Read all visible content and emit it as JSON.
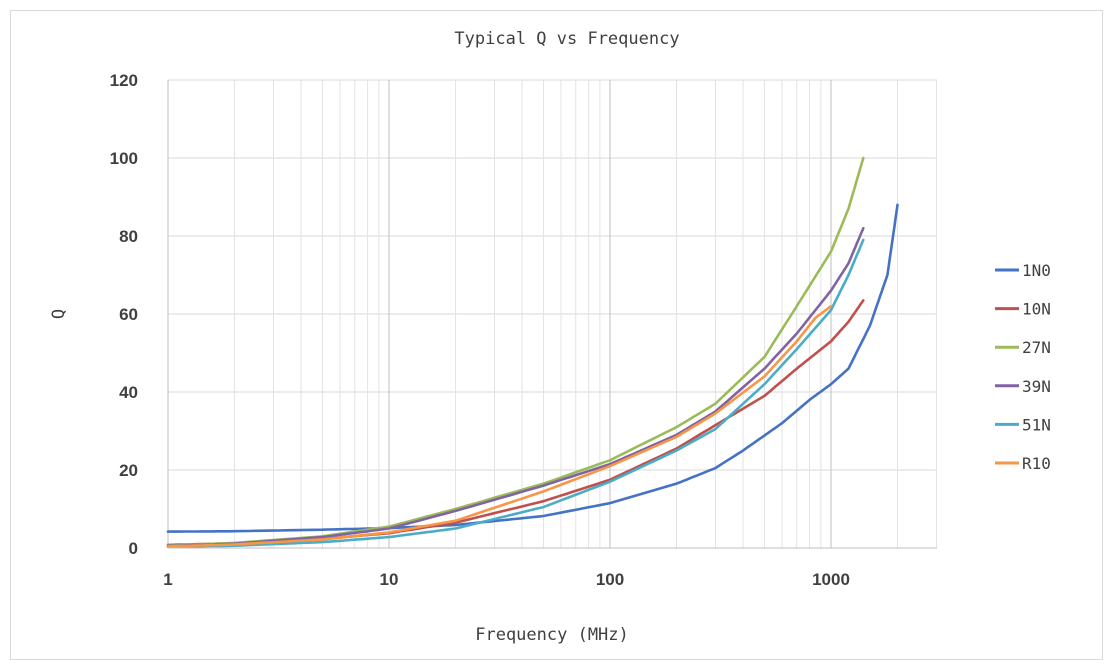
{
  "chart_data": {
    "type": "line",
    "title": "Typical Q vs Frequency",
    "xlabel": "Frequency (MHz)",
    "ylabel": "Q",
    "x_scale": "log",
    "xlim": [
      1,
      3000
    ],
    "ylim": [
      0,
      120
    ],
    "x_ticks": [
      "1",
      "10",
      "100",
      "1000"
    ],
    "y_ticks": [
      "0",
      "20",
      "40",
      "60",
      "80",
      "100",
      "120"
    ],
    "grid": true,
    "legend_position": "right",
    "series": [
      {
        "name": "1N0",
        "color": "#4472c4",
        "points": [
          [
            1,
            4.2
          ],
          [
            2,
            4.3
          ],
          [
            5,
            4.7
          ],
          [
            10,
            5.1
          ],
          [
            20,
            5.9
          ],
          [
            50,
            8.2
          ],
          [
            100,
            11.5
          ],
          [
            200,
            16.5
          ],
          [
            300,
            20.5
          ],
          [
            400,
            25
          ],
          [
            600,
            32
          ],
          [
            800,
            38
          ],
          [
            1000,
            42
          ],
          [
            1200,
            46
          ],
          [
            1500,
            57
          ],
          [
            1800,
            70
          ],
          [
            2000,
            88
          ]
        ]
      },
      {
        "name": "10N",
        "color": "#c0504d",
        "points": [
          [
            1,
            0.8
          ],
          [
            2,
            1.2
          ],
          [
            5,
            2.3
          ],
          [
            10,
            3.8
          ],
          [
            20,
            6.5
          ],
          [
            50,
            12
          ],
          [
            100,
            17.5
          ],
          [
            200,
            25.5
          ],
          [
            300,
            31.5
          ],
          [
            500,
            39
          ],
          [
            700,
            46
          ],
          [
            1000,
            53
          ],
          [
            1200,
            58
          ],
          [
            1400,
            63.5
          ]
        ]
      },
      {
        "name": "27N",
        "color": "#9bbb59",
        "points": [
          [
            1,
            0.6
          ],
          [
            2,
            1.3
          ],
          [
            5,
            3
          ],
          [
            10,
            5.5
          ],
          [
            20,
            10
          ],
          [
            50,
            16.5
          ],
          [
            100,
            22.5
          ],
          [
            200,
            31
          ],
          [
            300,
            37
          ],
          [
            500,
            49
          ],
          [
            700,
            62
          ],
          [
            1000,
            76
          ],
          [
            1200,
            87
          ],
          [
            1400,
            100
          ]
        ]
      },
      {
        "name": "39N",
        "color": "#8064a2",
        "points": [
          [
            1,
            0.5
          ],
          [
            2,
            1.1
          ],
          [
            5,
            2.8
          ],
          [
            10,
            5
          ],
          [
            20,
            9.5
          ],
          [
            50,
            16
          ],
          [
            100,
            21.5
          ],
          [
            200,
            29
          ],
          [
            300,
            35
          ],
          [
            500,
            46
          ],
          [
            700,
            55
          ],
          [
            1000,
            66
          ],
          [
            1200,
            73
          ],
          [
            1400,
            82
          ]
        ]
      },
      {
        "name": "51N",
        "color": "#4bacc6",
        "points": [
          [
            1,
            0.3
          ],
          [
            2,
            0.6
          ],
          [
            5,
            1.5
          ],
          [
            10,
            2.8
          ],
          [
            20,
            5
          ],
          [
            50,
            10.5
          ],
          [
            100,
            17
          ],
          [
            200,
            25
          ],
          [
            300,
            30.5
          ],
          [
            500,
            42
          ],
          [
            700,
            51
          ],
          [
            1000,
            61
          ],
          [
            1200,
            70
          ],
          [
            1400,
            79
          ]
        ]
      },
      {
        "name": "R10",
        "color": "#f79646",
        "points": [
          [
            1,
            0.4
          ],
          [
            2,
            0.9
          ],
          [
            5,
            2.2
          ],
          [
            10,
            4
          ],
          [
            20,
            7
          ],
          [
            50,
            14.5
          ],
          [
            100,
            21
          ],
          [
            200,
            28.5
          ],
          [
            300,
            34.5
          ],
          [
            500,
            44
          ],
          [
            700,
            53
          ],
          [
            850,
            59
          ],
          [
            1000,
            62
          ]
        ]
      }
    ]
  }
}
